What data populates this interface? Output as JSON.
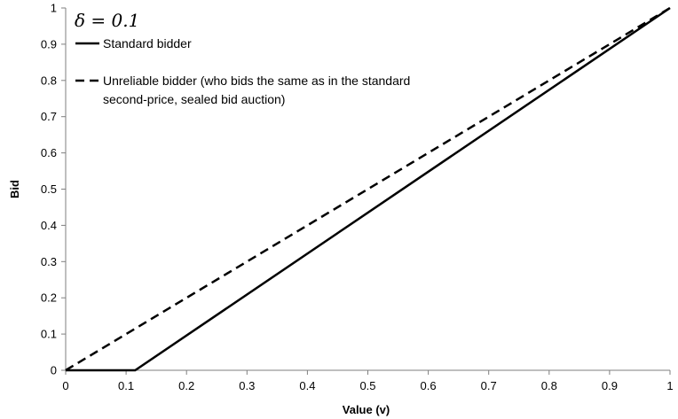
{
  "chart_data": {
    "type": "line",
    "annotation": "δ = 0.1",
    "xlabel": "Value (v)",
    "ylabel": "Bid",
    "xlim": [
      0,
      1
    ],
    "ylim": [
      0,
      1
    ],
    "x_ticks": [
      "0",
      "0.1",
      "0.2",
      "0.3",
      "0.4",
      "0.5",
      "0.6",
      "0.7",
      "0.8",
      "0.9",
      "1"
    ],
    "y_ticks": [
      "0",
      "0.1",
      "0.2",
      "0.3",
      "0.4",
      "0.5",
      "0.6",
      "0.7",
      "0.8",
      "0.9",
      "1"
    ],
    "grid": false,
    "legend_position": "top-left",
    "series": [
      {
        "name": "Standard bidder",
        "style": "solid",
        "color": "#000000",
        "points": [
          [
            0,
            0
          ],
          [
            0.115,
            0
          ],
          [
            1,
            1
          ]
        ]
      },
      {
        "name": "Unreliable bidder (who bids the same as in the standard second-price, sealed bid auction)",
        "name_lines": [
          "Unreliable bidder (who bids the same as in the standard",
          "second-price, sealed bid auction)"
        ],
        "style": "dashed",
        "color": "#000000",
        "points": [
          [
            0,
            0
          ],
          [
            1,
            1
          ]
        ]
      }
    ]
  }
}
